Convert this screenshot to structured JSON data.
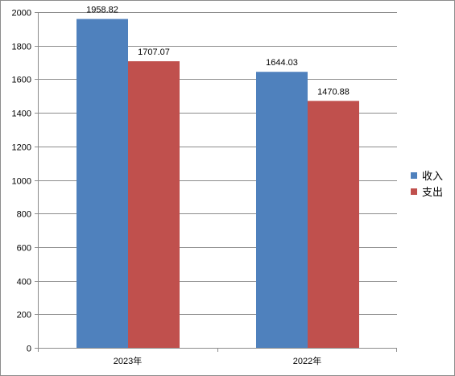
{
  "chart_data": {
    "type": "bar",
    "categories": [
      "2023年",
      "2022年"
    ],
    "series": [
      {
        "name": "收入",
        "values": [
          1958.82,
          1644.03
        ],
        "color": "#4f81bd"
      },
      {
        "name": "支出",
        "values": [
          1707.07,
          1470.88
        ],
        "color": "#c0504d"
      }
    ],
    "data_labels": [
      [
        "1958.82",
        "1644.03"
      ],
      [
        "1707.07",
        "1470.88"
      ]
    ],
    "ylim": [
      0,
      2000
    ],
    "yticks": [
      0,
      200,
      400,
      600,
      800,
      1000,
      1200,
      1400,
      1600,
      1800,
      2000
    ],
    "grid": true,
    "legend_position": "right"
  }
}
